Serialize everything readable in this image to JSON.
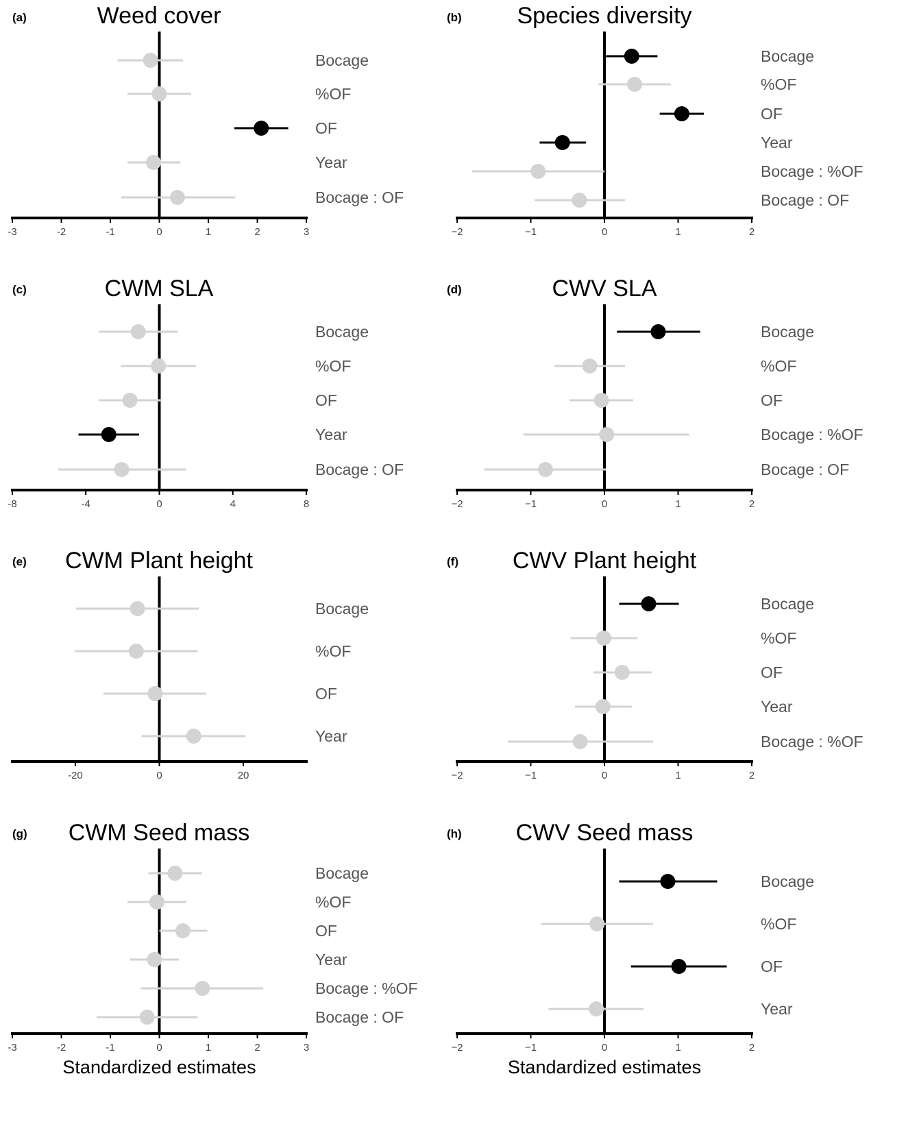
{
  "colors": {
    "significant": "#000000",
    "not_significant": "#d3d3d3",
    "axis": "#000000",
    "label": "#555555"
  },
  "chart_data": [
    {
      "type": "scatter",
      "letter": "(a)",
      "title": "Weed cover",
      "xlim": [
        -3,
        3
      ],
      "ticks": [
        -3,
        -2,
        -1,
        0,
        1,
        2,
        3
      ],
      "tick_labels": [
        "-3",
        "-2",
        "-1",
        "0",
        "1",
        "2",
        "3"
      ],
      "xlabel": "",
      "rows": [
        {
          "label": "Bocage",
          "estimate": -0.18,
          "lower": -0.85,
          "upper": 0.48,
          "significant": false
        },
        {
          "label": "%OF",
          "estimate": 0.0,
          "lower": -0.65,
          "upper": 0.65,
          "significant": false
        },
        {
          "label": "OF",
          "estimate": 2.08,
          "lower": 1.53,
          "upper": 2.63,
          "significant": true
        },
        {
          "label": "Year",
          "estimate": -0.12,
          "lower": -0.65,
          "upper": 0.43,
          "significant": false
        },
        {
          "label": "Bocage : OF",
          "estimate": 0.37,
          "lower": -0.78,
          "upper": 1.55,
          "significant": false
        }
      ]
    },
    {
      "type": "scatter",
      "letter": "(b)",
      "title": "Species diversity",
      "xlim": [
        -2,
        2
      ],
      "ticks": [
        -2,
        -1,
        0,
        1,
        2
      ],
      "tick_labels": [
        "−2",
        "−1",
        "0",
        "1",
        "2"
      ],
      "xlabel": "",
      "rows": [
        {
          "label": "Bocage",
          "estimate": 0.37,
          "lower": 0.02,
          "upper": 0.72,
          "significant": true
        },
        {
          "label": "%OF",
          "estimate": 0.41,
          "lower": -0.08,
          "upper": 0.9,
          "significant": false
        },
        {
          "label": "OF",
          "estimate": 1.05,
          "lower": 0.75,
          "upper": 1.35,
          "significant": true
        },
        {
          "label": "Year",
          "estimate": -0.57,
          "lower": -0.88,
          "upper": -0.25,
          "significant": true
        },
        {
          "label": "Bocage : %OF",
          "estimate": -0.9,
          "lower": -1.8,
          "upper": 0.0,
          "significant": false
        },
        {
          "label": "Bocage : OF",
          "estimate": -0.34,
          "lower": -0.95,
          "upper": 0.28,
          "significant": false
        }
      ]
    },
    {
      "type": "scatter",
      "letter": "(c)",
      "title": "CWM SLA",
      "xlim": [
        -8,
        8
      ],
      "ticks": [
        -8,
        -4,
        0,
        4,
        8
      ],
      "tick_labels": [
        "-8",
        "-4",
        "0",
        "4",
        "8"
      ],
      "xlabel": "",
      "rows": [
        {
          "label": "Bocage",
          "estimate": -1.15,
          "lower": -3.3,
          "upper": 1.0,
          "significant": false
        },
        {
          "label": "%OF",
          "estimate": -0.05,
          "lower": -2.1,
          "upper": 2.0,
          "significant": false
        },
        {
          "label": "OF",
          "estimate": -1.6,
          "lower": -3.3,
          "upper": 0.1,
          "significant": false
        },
        {
          "label": "Year",
          "estimate": -2.75,
          "lower": -4.4,
          "upper": -1.1,
          "significant": true
        },
        {
          "label": "Bocage : OF",
          "estimate": -2.05,
          "lower": -5.5,
          "upper": 1.45,
          "significant": false
        }
      ]
    },
    {
      "type": "scatter",
      "letter": "(d)",
      "title": "CWV SLA",
      "xlim": [
        -2,
        2
      ],
      "ticks": [
        -2,
        -1,
        0,
        1,
        2
      ],
      "tick_labels": [
        "−2",
        "−1",
        "0",
        "1",
        "2"
      ],
      "xlabel": "",
      "rows": [
        {
          "label": "Bocage",
          "estimate": 0.73,
          "lower": 0.17,
          "upper": 1.3,
          "significant": true
        },
        {
          "label": "%OF",
          "estimate": -0.2,
          "lower": -0.68,
          "upper": 0.28,
          "significant": false
        },
        {
          "label": "OF",
          "estimate": -0.04,
          "lower": -0.47,
          "upper": 0.39,
          "significant": false
        },
        {
          "label": "Bocage : %OF",
          "estimate": 0.03,
          "lower": -1.1,
          "upper": 1.15,
          "significant": false
        },
        {
          "label": "Bocage : OF",
          "estimate": -0.8,
          "lower": -1.63,
          "upper": 0.02,
          "significant": false
        }
      ]
    },
    {
      "type": "scatter",
      "letter": "(e)",
      "title": "CWM Plant height",
      "xlim": [
        -35,
        35
      ],
      "ticks": [
        -20,
        0,
        20
      ],
      "tick_labels": [
        "-20",
        "0",
        "20"
      ],
      "xlabel": "",
      "rows": [
        {
          "label": "Bocage",
          "estimate": -5.2,
          "lower": -19.8,
          "upper": 9.4,
          "significant": false
        },
        {
          "label": "%OF",
          "estimate": -5.5,
          "lower": -20.1,
          "upper": 9.1,
          "significant": false
        },
        {
          "label": "OF",
          "estimate": -1.0,
          "lower": -13.3,
          "upper": 11.2,
          "significant": false
        },
        {
          "label": "Year",
          "estimate": 8.2,
          "lower": -4.2,
          "upper": 20.5,
          "significant": false
        }
      ]
    },
    {
      "type": "scatter",
      "letter": "(f)",
      "title": "CWV Plant height",
      "xlim": [
        -2,
        2
      ],
      "ticks": [
        -2,
        -1,
        0,
        1,
        2
      ],
      "tick_labels": [
        "−2",
        "−1",
        "0",
        "1",
        "2"
      ],
      "xlabel": "",
      "rows": [
        {
          "label": "Bocage",
          "estimate": 0.6,
          "lower": 0.2,
          "upper": 1.01,
          "significant": true
        },
        {
          "label": "%OF",
          "estimate": -0.01,
          "lower": -0.46,
          "upper": 0.45,
          "significant": false
        },
        {
          "label": "OF",
          "estimate": 0.24,
          "lower": -0.15,
          "upper": 0.64,
          "significant": false
        },
        {
          "label": "Year",
          "estimate": -0.02,
          "lower": -0.4,
          "upper": 0.37,
          "significant": false
        },
        {
          "label": "Bocage : %OF",
          "estimate": -0.33,
          "lower": -1.31,
          "upper": 0.66,
          "significant": false
        }
      ]
    },
    {
      "type": "scatter",
      "letter": "(g)",
      "title": "CWM Seed mass",
      "xlim": [
        -3,
        3
      ],
      "ticks": [
        -3,
        -2,
        -1,
        0,
        1,
        2,
        3
      ],
      "tick_labels": [
        "-3",
        "-2",
        "-1",
        "0",
        "1",
        "2",
        "3"
      ],
      "xlabel": "Standardized estimates",
      "rows": [
        {
          "label": "Bocage",
          "estimate": 0.32,
          "lower": -0.22,
          "upper": 0.87,
          "significant": false
        },
        {
          "label": "%OF",
          "estimate": -0.05,
          "lower": -0.65,
          "upper": 0.55,
          "significant": false
        },
        {
          "label": "OF",
          "estimate": 0.48,
          "lower": 0.0,
          "upper": 0.98,
          "significant": false
        },
        {
          "label": "Year",
          "estimate": -0.1,
          "lower": -0.6,
          "upper": 0.4,
          "significant": false
        },
        {
          "label": "Bocage : %OF",
          "estimate": 0.88,
          "lower": -0.38,
          "upper": 2.12,
          "significant": false
        },
        {
          "label": "Bocage : OF",
          "estimate": -0.25,
          "lower": -1.28,
          "upper": 0.78,
          "significant": false
        }
      ]
    },
    {
      "type": "scatter",
      "letter": "(h)",
      "title": "CWV Seed mass",
      "xlim": [
        -2,
        2
      ],
      "ticks": [
        -2,
        -1,
        0,
        1,
        2
      ],
      "tick_labels": [
        "−2",
        "−1",
        "0",
        "1",
        "2"
      ],
      "xlabel": "Standardized estimates",
      "rows": [
        {
          "label": "Bocage",
          "estimate": 0.86,
          "lower": 0.2,
          "upper": 1.53,
          "significant": true
        },
        {
          "label": "%OF",
          "estimate": -0.1,
          "lower": -0.86,
          "upper": 0.66,
          "significant": false
        },
        {
          "label": "OF",
          "estimate": 1.01,
          "lower": 0.36,
          "upper": 1.66,
          "significant": true
        },
        {
          "label": "Year",
          "estimate": -0.11,
          "lower": -0.76,
          "upper": 0.53,
          "significant": false
        }
      ]
    }
  ]
}
